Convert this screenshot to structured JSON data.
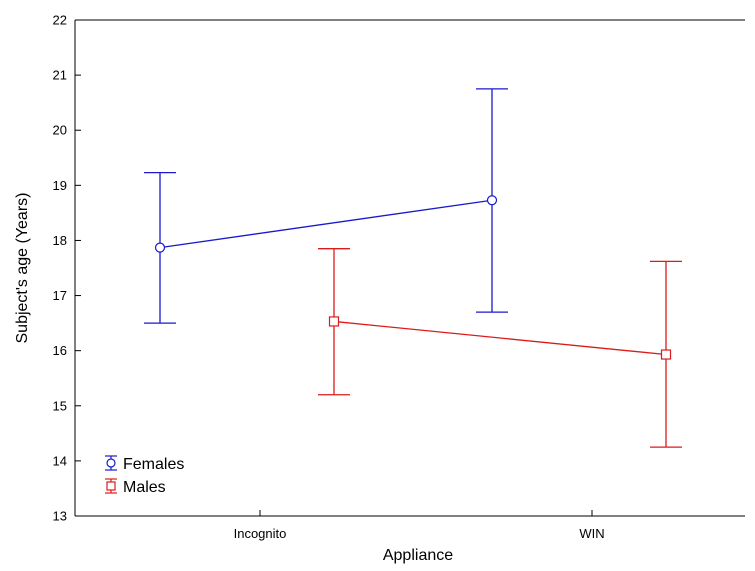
{
  "chart_data": {
    "type": "line",
    "title": "",
    "xlabel": "Appliance",
    "ylabel": "Subject's age (Years)",
    "categories": [
      "Incognito",
      "WIN"
    ],
    "ylim": [
      13,
      22
    ],
    "yticks": [
      13,
      14,
      15,
      16,
      17,
      18,
      19,
      20,
      21,
      22
    ],
    "grid": false,
    "legend_position": "bottom-left",
    "series": [
      {
        "name": "Females",
        "color": "#1a1acc",
        "marker": "circle",
        "values": [
          17.87,
          18.73
        ],
        "lower": [
          16.5,
          16.7
        ],
        "upper": [
          19.23,
          20.75
        ]
      },
      {
        "name": "Males",
        "color": "#dd1a1a",
        "marker": "square",
        "values": [
          16.53,
          15.93
        ],
        "lower": [
          15.2,
          14.25
        ],
        "upper": [
          17.85,
          17.62
        ]
      }
    ]
  }
}
